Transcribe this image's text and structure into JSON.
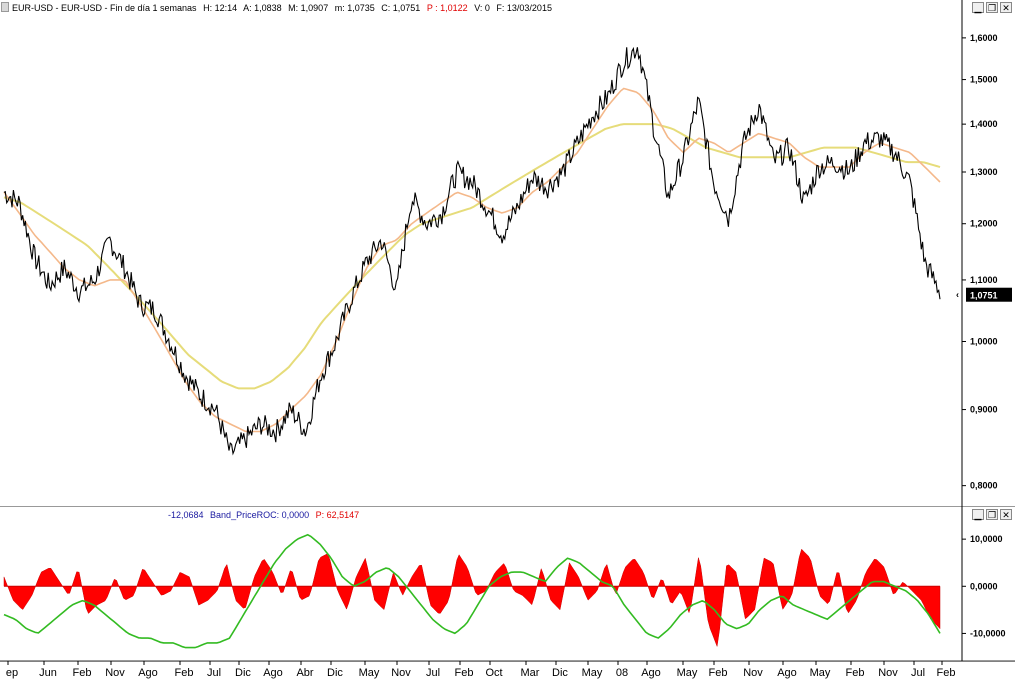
{
  "main_header": {
    "symbol": "EUR-USD - EUR-USD - Fin de día 1 semanas",
    "hour": "H: 12:14",
    "open": "A: 1,0838",
    "max": "M: 1,0907",
    "min": "m: 1,0735",
    "close": "C: 1,0751",
    "p": "P : 1,0122",
    "volume": "V: 0",
    "date": "F: 13/03/2015"
  },
  "sub_header": {
    "value": "-12,0684",
    "name": "Band_PriceROC: 0,0000",
    "p": "P: 62,5147"
  },
  "window_controls": {
    "minimize": "▁",
    "restore": "❐",
    "close": "✕"
  },
  "colors": {
    "price": "#000000",
    "ma_short": "#f4b88a",
    "ma_long": "#e6dc7a",
    "histogram": "#ff0000",
    "roc_line": "#33bb22",
    "last_price_bg": "#000000"
  },
  "chart_data": [
    {
      "type": "line",
      "title": "EUR-USD",
      "y_scale": "log",
      "ylim": [
        0.78,
        1.65
      ],
      "y_ticks": [
        "1,6000",
        "1,5000",
        "1,4000",
        "1,3000",
        "1,2000",
        "1,1000",
        "1,0000",
        "0,9000",
        "0,8000"
      ],
      "last_price_label": "1,0751",
      "x_labels": [
        "ep",
        "Jun",
        "Feb",
        "Nov",
        "Ago",
        "Feb",
        "Jul",
        "Dic",
        "Ago",
        "Abr",
        "Dic",
        "May",
        "Nov",
        "Jul",
        "Feb",
        "Oct",
        "Mar",
        "Dic",
        "May",
        "08",
        "Ago",
        "May",
        "Feb",
        "Nov",
        "Ago",
        "May",
        "Feb",
        "Nov",
        "Jul",
        "Feb"
      ],
      "series": [
        {
          "values": [
            1.26,
            1.24,
            1.14,
            1.09,
            1.12,
            1.08,
            1.1,
            1.17,
            1.12,
            1.06,
            1.05,
            1.0,
            0.95,
            0.92,
            0.9,
            0.84,
            0.86,
            0.88,
            0.87,
            0.9,
            0.87,
            0.95,
            1.0,
            1.07,
            1.13,
            1.17,
            1.08,
            1.25,
            1.2,
            1.22,
            1.3,
            1.28,
            1.23,
            1.18,
            1.23,
            1.29,
            1.27,
            1.3,
            1.36,
            1.42,
            1.46,
            1.54,
            1.58,
            1.4,
            1.25,
            1.33,
            1.45,
            1.28,
            1.21,
            1.36,
            1.44,
            1.32,
            1.35,
            1.24,
            1.31,
            1.32,
            1.3,
            1.36,
            1.37,
            1.34,
            1.28,
            1.13,
            1.08
          ]
        },
        {
          "values": [
            1.26,
            1.22,
            1.18,
            1.15,
            1.12,
            1.1,
            1.09,
            1.1,
            1.1,
            1.06,
            1.02,
            0.98,
            0.94,
            0.91,
            0.89,
            0.88,
            0.87,
            0.87,
            0.88,
            0.9,
            0.92,
            0.95,
            1.0,
            1.06,
            1.12,
            1.16,
            1.17,
            1.2,
            1.22,
            1.24,
            1.26,
            1.25,
            1.23,
            1.22,
            1.23,
            1.26,
            1.28,
            1.31,
            1.34,
            1.39,
            1.44,
            1.48,
            1.47,
            1.43,
            1.37,
            1.34,
            1.37,
            1.36,
            1.34,
            1.36,
            1.38,
            1.37,
            1.36,
            1.33,
            1.31,
            1.31,
            1.31,
            1.34,
            1.36,
            1.35,
            1.34,
            1.31,
            1.28
          ]
        },
        {
          "values": [
            1.25,
            1.24,
            1.22,
            1.2,
            1.18,
            1.16,
            1.13,
            1.1,
            1.07,
            1.04,
            1.01,
            0.98,
            0.96,
            0.94,
            0.93,
            0.93,
            0.94,
            0.96,
            0.99,
            1.03,
            1.06,
            1.09,
            1.12,
            1.15,
            1.18,
            1.2,
            1.21,
            1.22,
            1.23,
            1.25,
            1.27,
            1.29,
            1.31,
            1.33,
            1.35,
            1.37,
            1.39,
            1.4,
            1.4,
            1.4,
            1.39,
            1.37,
            1.35,
            1.34,
            1.33,
            1.33,
            1.33,
            1.33,
            1.34,
            1.35,
            1.35,
            1.35,
            1.34,
            1.33,
            1.32,
            1.32,
            1.31
          ]
        }
      ]
    },
    {
      "type": "bar",
      "title": "Band_PriceROC",
      "ylim": [
        -15,
        13
      ],
      "y_ticks": [
        "10,0000",
        "0,0000",
        "-10,0000"
      ],
      "series": [
        {
          "name": "Band_PriceROC",
          "values": [
            2,
            -3,
            -5,
            -2,
            3,
            4,
            1,
            -2,
            4,
            -6,
            -4,
            -3,
            2,
            -3,
            -2,
            4,
            1,
            -2,
            -1,
            3,
            2,
            -4,
            -3,
            -1,
            5,
            -3,
            -5,
            2,
            6,
            3,
            -2,
            4,
            -3,
            -2,
            6,
            7,
            -1,
            -5,
            2,
            6,
            -3,
            -5,
            3,
            -2,
            2,
            5,
            -4,
            -6,
            -3,
            7,
            4,
            -2,
            -1,
            3,
            5,
            -1,
            -2,
            -4,
            4,
            -3,
            -5,
            5,
            2,
            -3,
            -1,
            5,
            -2,
            4,
            6,
            3,
            -3,
            2,
            -4,
            -1,
            -6,
            7,
            -8,
            -13,
            5,
            3,
            -7,
            -5,
            6,
            5,
            -5,
            -2,
            8,
            6,
            -2,
            -4,
            4,
            -6,
            -3,
            3,
            6,
            4,
            -2,
            1,
            -1,
            -3,
            -7,
            -9
          ]
        },
        {
          "name": "ROC",
          "values": [
            -6,
            -7,
            -9,
            -10,
            -8,
            -6,
            -4,
            -3,
            -4,
            -6,
            -8,
            -10,
            -11,
            -11,
            -12,
            -12,
            -13,
            -13,
            -12,
            -12,
            -11,
            -7,
            -3,
            1,
            5,
            8,
            10,
            11,
            9,
            6,
            2,
            0,
            1,
            3,
            4,
            2,
            -1,
            -4,
            -7,
            -9,
            -10,
            -8,
            -4,
            0,
            2,
            3,
            3,
            2,
            1,
            4,
            6,
            5,
            3,
            1,
            0,
            -4,
            -7,
            -10,
            -11,
            -9,
            -6,
            -4,
            -3,
            -5,
            -8,
            -9,
            -8,
            -5,
            -3,
            -2,
            -4,
            -5,
            -6,
            -7,
            -5,
            -3,
            -1,
            1,
            1,
            0,
            -1,
            -3,
            -6,
            -10
          ]
        }
      ]
    }
  ]
}
